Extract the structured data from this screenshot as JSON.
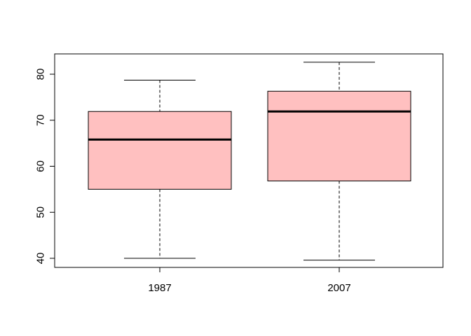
{
  "chart_data": {
    "type": "boxplot",
    "title": "",
    "xlabel": "",
    "ylabel": "",
    "categories": [
      "1987",
      "2007"
    ],
    "boxes": [
      {
        "label": "1987",
        "whisker_low": 40.0,
        "q1": 55.0,
        "median": 65.8,
        "q3": 71.9,
        "whisker_high": 78.7
      },
      {
        "label": "2007",
        "whisker_low": 39.6,
        "q1": 56.8,
        "median": 71.9,
        "q3": 76.3,
        "whisker_high": 82.6
      }
    ],
    "ylim": [
      38,
      84
    ],
    "yticks": [
      40,
      50,
      60,
      70,
      80
    ],
    "grid": false,
    "colors": {
      "box_fill": "#ffc0c0",
      "stroke": "#000000"
    }
  }
}
